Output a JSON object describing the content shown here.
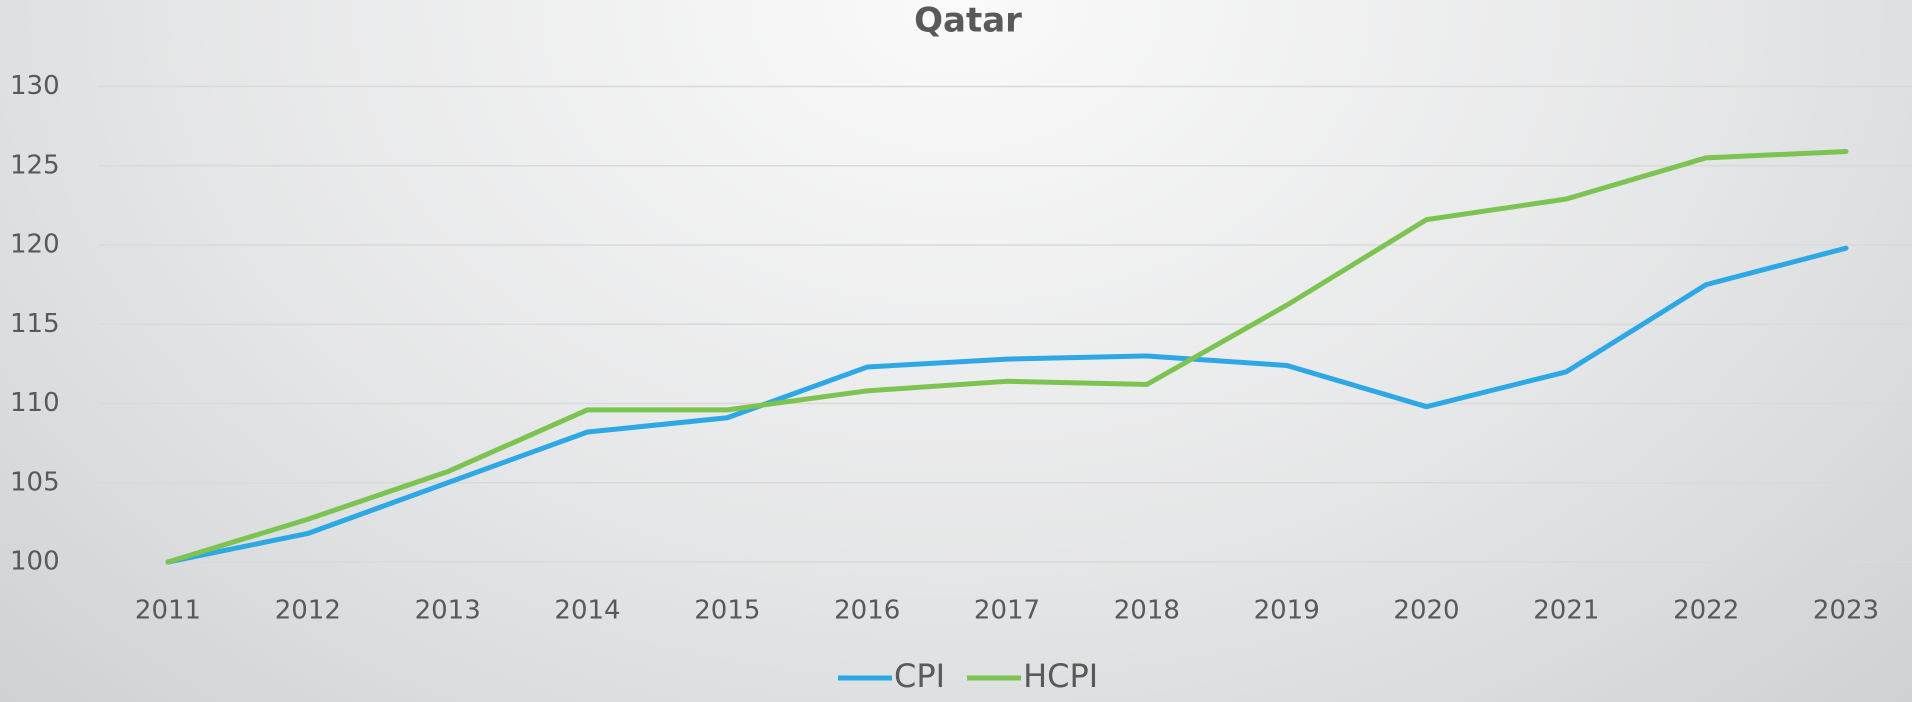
{
  "chart_data": {
    "type": "line",
    "title": "Qatar",
    "categories": [
      "2011",
      "2012",
      "2013",
      "2014",
      "2015",
      "2016",
      "2017",
      "2018",
      "2019",
      "2020",
      "2021",
      "2022",
      "2023"
    ],
    "series": [
      {
        "name": "CPI",
        "color": "#2ea8e5",
        "values": [
          100.0,
          101.8,
          105.0,
          108.2,
          109.1,
          112.3,
          112.8,
          113.0,
          112.4,
          109.8,
          112.0,
          117.5,
          119.8
        ]
      },
      {
        "name": "HCPI",
        "color": "#7dc352",
        "values": [
          100.0,
          102.7,
          105.7,
          109.6,
          109.6,
          110.8,
          111.4,
          111.2,
          116.2,
          121.6,
          122.9,
          125.5,
          125.9
        ]
      }
    ],
    "ylim": [
      100,
      130
    ],
    "yticks": [
      100,
      105,
      110,
      115,
      120,
      125,
      130
    ],
    "grid": true,
    "legend": "bottom"
  }
}
